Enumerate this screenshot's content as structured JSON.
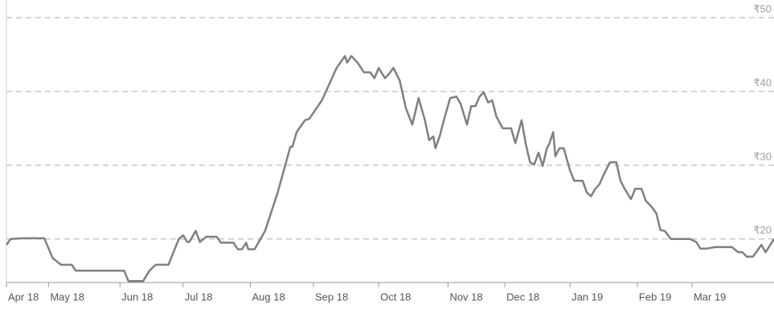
{
  "chart_data": {
    "type": "line",
    "color": "#808080",
    "grid": true,
    "xlim": [
      0,
      365
    ],
    "ylim": [
      14.1,
      52.4
    ],
    "yticks": [
      {
        "value": 20,
        "label": "₹20"
      },
      {
        "value": 30,
        "label": "₹30"
      },
      {
        "value": 40,
        "label": "₹40"
      },
      {
        "value": 50,
        "label": "₹50"
      }
    ],
    "xticks": [
      {
        "value": 0,
        "label": "Apr 18"
      },
      {
        "value": 20,
        "label": "May 18"
      },
      {
        "value": 54,
        "label": "Jun 18"
      },
      {
        "value": 84,
        "label": "Jul 18"
      },
      {
        "value": 116,
        "label": "Aug 18"
      },
      {
        "value": 146,
        "label": "Sep 18"
      },
      {
        "value": 177,
        "label": "Oct 18"
      },
      {
        "value": 210,
        "label": "Nov 18"
      },
      {
        "value": 237,
        "label": "Dec 18"
      },
      {
        "value": 268,
        "label": "Jan 19"
      },
      {
        "value": 300,
        "label": "Feb 19"
      },
      {
        "value": 326,
        "label": "Mar 19"
      }
    ],
    "x": [
      0,
      2,
      8,
      18,
      22,
      26,
      31,
      33,
      56,
      58,
      65,
      68,
      71,
      77,
      82,
      84,
      86,
      87,
      90,
      92,
      95,
      100,
      102,
      108,
      110,
      112,
      114,
      115,
      118,
      123,
      129,
      135,
      136,
      138,
      142,
      144,
      150,
      157,
      161,
      162,
      164,
      167,
      170,
      173,
      175,
      177,
      180,
      182,
      184,
      187,
      190,
      193,
      196,
      199,
      201,
      203,
      204,
      206,
      208,
      211,
      214,
      216,
      219,
      221,
      223,
      225,
      227,
      229,
      231,
      233,
      236,
      240,
      242,
      245,
      247,
      249,
      251,
      253,
      255,
      257,
      258,
      260,
      261,
      263,
      265,
      268,
      270,
      274,
      276,
      278,
      280,
      282,
      284,
      287,
      290,
      292,
      294,
      297,
      299,
      302,
      304,
      307,
      309,
      311,
      313,
      316,
      325,
      328,
      330,
      333,
      337,
      345,
      348,
      350,
      352,
      355,
      359,
      361,
      365
    ],
    "values": [
      19.2,
      20,
      20.1,
      20.1,
      17.4,
      16.5,
      16.5,
      15.7,
      15.7,
      14.3,
      14.3,
      15.7,
      16.5,
      16.5,
      20,
      20.5,
      19.6,
      19.6,
      21.1,
      19.6,
      20.3,
      20.3,
      19.5,
      19.5,
      18.6,
      18.6,
      19.5,
      18.6,
      18.6,
      21.1,
      26.3,
      32.5,
      32.5,
      34.5,
      36.1,
      36.3,
      38.8,
      43.2,
      44.8,
      43.9,
      44.8,
      43.9,
      42.6,
      42.6,
      41.8,
      43.2,
      41.8,
      42.4,
      43.2,
      41.5,
      37.7,
      35.5,
      39.1,
      36.1,
      33.4,
      33.9,
      32.3,
      33.9,
      36.1,
      39.1,
      39.3,
      38.3,
      35.5,
      38.0,
      38.0,
      39.3,
      39.9,
      38.5,
      38.8,
      36.6,
      35.0,
      35.0,
      33.0,
      36.1,
      32.8,
      30.4,
      30.1,
      31.7,
      29.9,
      32.3,
      32.8,
      34.5,
      31.2,
      32.3,
      32.3,
      29.3,
      27.9,
      27.9,
      26.3,
      25.8,
      26.8,
      27.4,
      28.7,
      30.4,
      30.4,
      27.9,
      26.8,
      25.4,
      26.8,
      26.8,
      25.2,
      24.3,
      23.5,
      21.2,
      21.1,
      20,
      20,
      19.6,
      18.7,
      18.7,
      18.9,
      18.9,
      18.2,
      18.2,
      17.6,
      17.6,
      19.2,
      18.2,
      20
    ]
  }
}
